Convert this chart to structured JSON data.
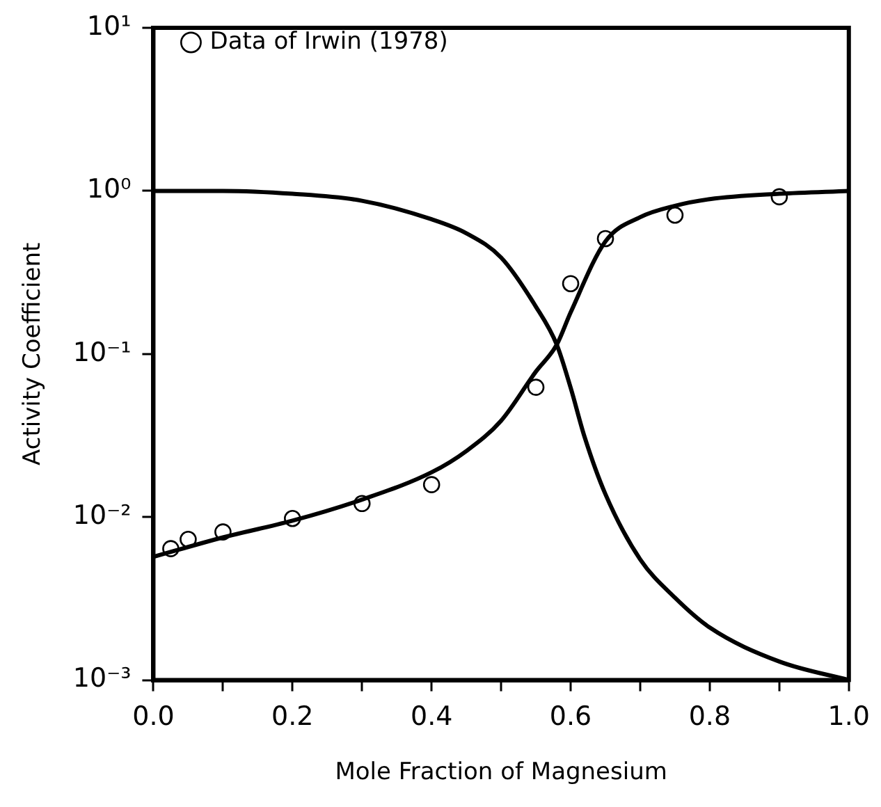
{
  "chart_data": {
    "type": "line",
    "xlabel": "Mole Fraction of Magnesium",
    "ylabel": "Activity Coefficient",
    "log": "y",
    "grid": false,
    "legend": "top left",
    "marker": "none",
    "line_style": "solid",
    "xlim": [
      0,
      1
    ],
    "ylim": [
      0.001,
      10
    ],
    "xticks": [
      {
        "value": 0,
        "label": "0.0"
      },
      {
        "value": 0.1,
        "label": null
      },
      {
        "value": 0.2,
        "label": "0.2"
      },
      {
        "value": 0.3,
        "label": null
      },
      {
        "value": 0.4,
        "label": "0.4"
      },
      {
        "value": 0.5,
        "label": null
      },
      {
        "value": 0.6,
        "label": "0.6"
      },
      {
        "value": 0.7,
        "label": null
      },
      {
        "value": 0.8,
        "label": "0.8"
      },
      {
        "value": 0.9,
        "label": null
      },
      {
        "value": 1,
        "label": "1.0"
      }
    ],
    "yticks": [
      {
        "value": 0.001,
        "label": "10⁻³"
      },
      {
        "value": 0.01,
        "label": "10⁻²"
      },
      {
        "value": 0.1,
        "label": "10⁻¹"
      },
      {
        "value": 1,
        "label": "10⁰"
      },
      {
        "value": 10,
        "label": "10¹"
      }
    ],
    "series": [
      {
        "type": "line",
        "color": "#000000",
        "x": [
          0,
          0.1,
          0.2,
          0.3,
          0.4,
          0.45,
          0.5,
          0.55,
          0.58,
          0.6,
          0.65,
          0.7,
          0.75,
          0.8,
          0.9,
          1.0
        ],
        "values": [
          0.0057,
          0.0075,
          0.0095,
          0.0128,
          0.0188,
          0.0254,
          0.039,
          0.078,
          0.114,
          0.18,
          0.49,
          0.69,
          0.81,
          0.89,
          0.96,
          1.0
        ]
      },
      {
        "type": "line",
        "color": "#000000",
        "x": [
          0,
          0.1,
          0.2,
          0.3,
          0.4,
          0.45,
          0.5,
          0.55,
          0.58,
          0.6,
          0.62,
          0.65,
          0.7,
          0.75,
          0.8,
          0.9,
          1.0
        ],
        "values": [
          1.0,
          1.0,
          0.96,
          0.87,
          0.67,
          0.55,
          0.39,
          0.195,
          0.114,
          0.062,
          0.031,
          0.0138,
          0.0055,
          0.0032,
          0.0021,
          0.0013,
          0.001
        ]
      },
      {
        "type": "scatter",
        "name": "Data of Irwin (1978)",
        "color": "#000000",
        "marker": "circle",
        "x": [
          0.025,
          0.05,
          0.1,
          0.2,
          0.3,
          0.4,
          0.55,
          0.6,
          0.65,
          0.75,
          0.9
        ],
        "values": [
          0.0064,
          0.0073,
          0.0081,
          0.0098,
          0.0121,
          0.0158,
          0.0625,
          0.27,
          0.51,
          0.71,
          0.92
        ]
      }
    ]
  }
}
